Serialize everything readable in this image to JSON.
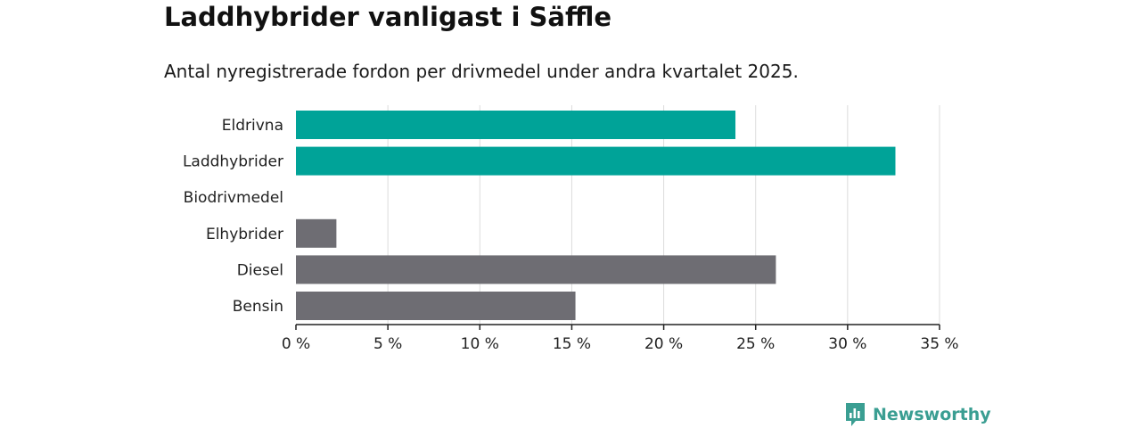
{
  "chart_data": {
    "type": "bar",
    "orientation": "horizontal",
    "title": "Laddhybrider vanligast i Säffle",
    "subtitle": "Antal nyregistrerade fordon per drivmedel under andra kvartalet 2025.",
    "categories": [
      "Eldrivna",
      "Laddhybrider",
      "Biodrivmedel",
      "Elhybrider",
      "Diesel",
      "Bensin"
    ],
    "values": [
      23.9,
      32.6,
      0,
      2.2,
      26.1,
      15.2
    ],
    "bar_colors": [
      "#00a398",
      "#00a398",
      "#6e6d73",
      "#6e6d73",
      "#6e6d73",
      "#6e6d73"
    ],
    "xlim": [
      0,
      35
    ],
    "x_ticks": [
      0,
      5,
      10,
      15,
      20,
      25,
      30,
      35
    ],
    "x_tick_labels": [
      "0 %",
      "5 %",
      "10 %",
      "15 %",
      "20 %",
      "25 %",
      "30 %",
      "35 %"
    ],
    "grid": true,
    "xlabel": "",
    "ylabel": ""
  },
  "brand": {
    "name": "Newsworthy",
    "icon": "newsworthy-logo-icon",
    "color": "#3a9e92"
  }
}
